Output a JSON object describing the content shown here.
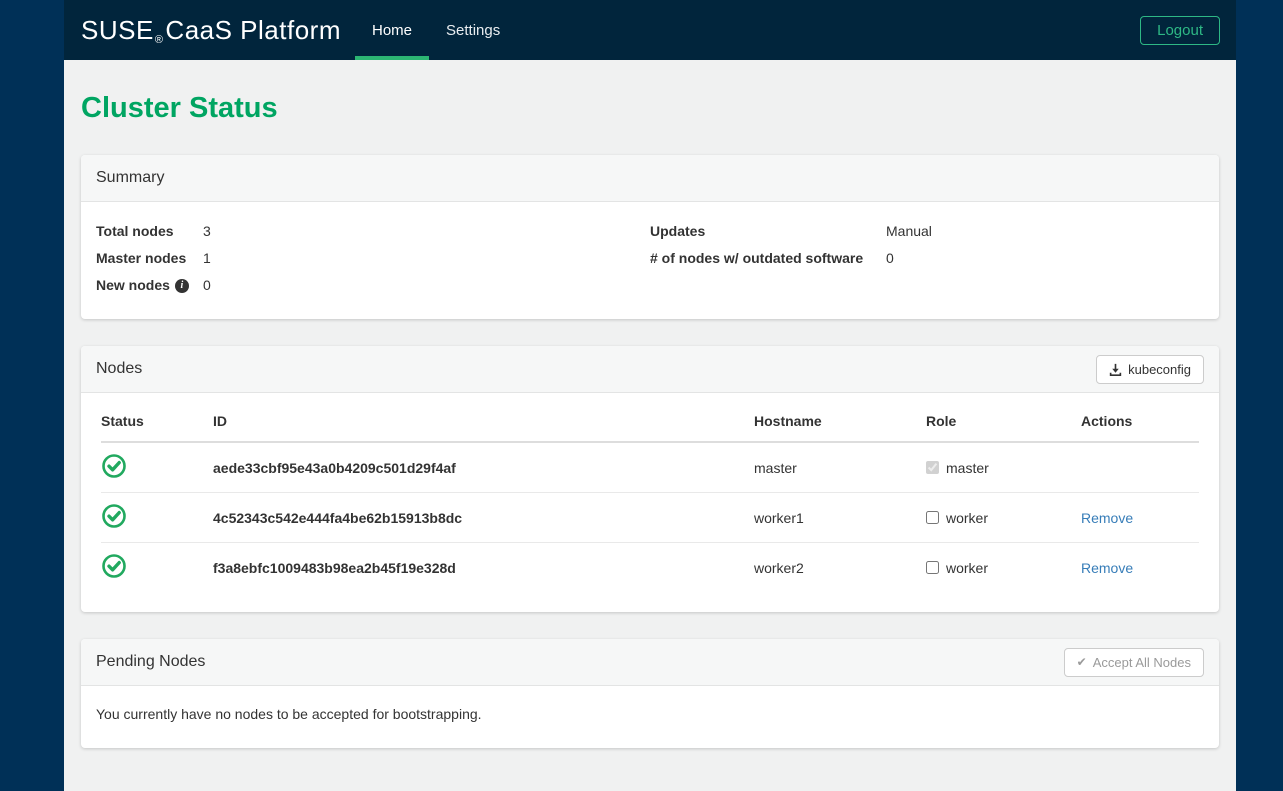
{
  "navbar": {
    "brand_suse": "SUSE",
    "brand_reg": "®",
    "brand_rest": "CaaS Platform",
    "tabs": [
      {
        "label": "Home",
        "active": true
      },
      {
        "label": "Settings",
        "active": false
      }
    ],
    "logout_label": "Logout"
  },
  "page_title": "Cluster Status",
  "summary": {
    "title": "Summary",
    "left": [
      {
        "label": "Total nodes",
        "value": "3"
      },
      {
        "label": "Master nodes",
        "value": "1"
      },
      {
        "label": "New nodes",
        "value": "0"
      }
    ],
    "right": [
      {
        "label": "Updates",
        "value": "Manual"
      },
      {
        "label": "# of nodes w/ outdated software",
        "value": "0"
      }
    ],
    "info_icon": "i"
  },
  "nodes": {
    "title": "Nodes",
    "kubeconfig_label": "kubeconfig",
    "columns": [
      "Status",
      "ID",
      "Hostname",
      "Role",
      "Actions"
    ],
    "rows": [
      {
        "status": "ok",
        "id": "aede33cbf95e43a0b4209c501d29f4af",
        "hostname": "master",
        "role": "master",
        "role_checked": true,
        "action": ""
      },
      {
        "status": "ok",
        "id": "4c52343c542e444fa4be62b15913b8dc",
        "hostname": "worker1",
        "role": "worker",
        "role_checked": false,
        "action": "Remove"
      },
      {
        "status": "ok",
        "id": "f3a8ebfc1009483b98ea2b45f19e328d",
        "hostname": "worker2",
        "role": "worker",
        "role_checked": false,
        "action": "Remove"
      }
    ]
  },
  "pending": {
    "title": "Pending Nodes",
    "accept_all_label": "Accept All Nodes",
    "empty_message": "You currently have no nodes to be accepted for bootstrapping."
  },
  "colors": {
    "outer_background": "#003057",
    "navbar_background": "#01253c",
    "content_background": "#f0f1f1",
    "accent_green": "#00a562",
    "tab_underline_green": "#2cb673",
    "status_icon_green": "#21a95f",
    "link_blue": "#377db8"
  }
}
